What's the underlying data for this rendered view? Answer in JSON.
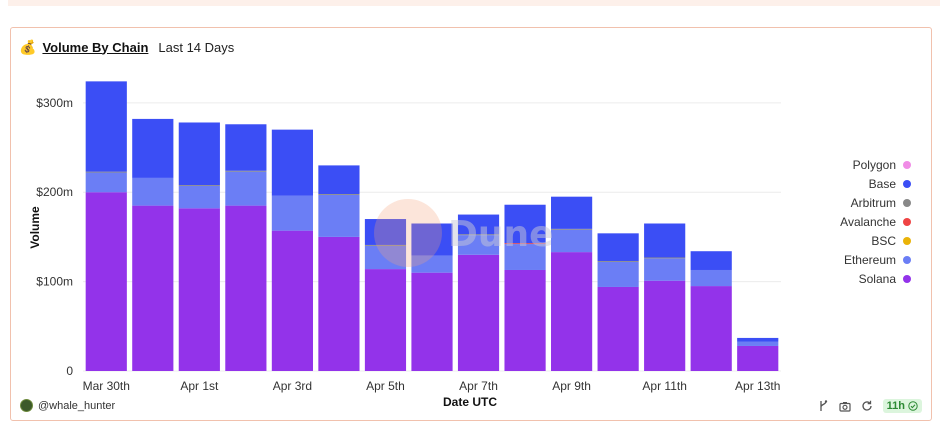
{
  "header": {
    "icon": "money-bag-icon",
    "title": "Volume By Chain",
    "subtitle": "Last 14 Days"
  },
  "chart_data": {
    "type": "bar",
    "stacked": true,
    "xlabel": "Date UTC",
    "ylabel": "Volume",
    "ylim": [
      0,
      330
    ],
    "y_unit": "m",
    "y_ticks": [
      "0",
      "$100m",
      "$200m",
      "$300m"
    ],
    "x_tick_labels": [
      "Mar 30th",
      "Apr 1st",
      "Apr 3rd",
      "Apr 5th",
      "Apr 7th",
      "Apr 9th",
      "Apr 11th",
      "Apr 13th"
    ],
    "categories": [
      "Mar 30th",
      "Mar 31st",
      "Apr 1st",
      "Apr 2nd",
      "Apr 3rd",
      "Apr 4th",
      "Apr 5th",
      "Apr 6th",
      "Apr 7th",
      "Apr 8th",
      "Apr 9th",
      "Apr 10th",
      "Apr 11th",
      "Apr 12th",
      "Apr 13th"
    ],
    "series": [
      {
        "name": "Solana",
        "color": "#9333ea",
        "values": [
          200,
          185,
          182,
          185,
          157,
          150,
          114,
          110,
          130,
          113,
          133,
          94,
          101,
          95,
          28
        ]
      },
      {
        "name": "Ethereum",
        "color": "#6b7ef5",
        "values": [
          22,
          31,
          25,
          38,
          39,
          47,
          26,
          19,
          22,
          29,
          25,
          28,
          25,
          18,
          5
        ]
      },
      {
        "name": "BSC",
        "color": "#eab308",
        "values": [
          0,
          0,
          0,
          0,
          0,
          0,
          0,
          0,
          0,
          0,
          0,
          0,
          0,
          0,
          0
        ]
      },
      {
        "name": "Avalanche",
        "color": "#ef4444",
        "values": [
          0,
          0,
          0,
          0,
          0,
          0,
          0,
          0,
          0,
          1,
          0,
          0,
          0,
          0,
          0
        ]
      },
      {
        "name": "Arbitrum",
        "color": "#888888",
        "values": [
          1,
          0,
          1,
          1,
          0,
          1,
          1,
          0,
          1,
          0,
          1,
          1,
          1,
          0,
          0
        ]
      },
      {
        "name": "Base",
        "color": "#3b4ef5",
        "values": [
          101,
          66,
          70,
          52,
          74,
          32,
          29,
          36,
          22,
          43,
          36,
          31,
          38,
          21,
          4
        ]
      },
      {
        "name": "Polygon",
        "color": "#f08ce6",
        "values": [
          0,
          0,
          0,
          0,
          0,
          0,
          0,
          0,
          0,
          0,
          0,
          0,
          0,
          0,
          0
        ]
      }
    ],
    "legend": [
      "Polygon",
      "Base",
      "Arbitrum",
      "Avalanche",
      "BSC",
      "Ethereum",
      "Solana"
    ],
    "legend_placement": "right",
    "grid": true,
    "watermark": "Dune"
  },
  "footer": {
    "author": "@whale_hunter",
    "age": "11h"
  }
}
